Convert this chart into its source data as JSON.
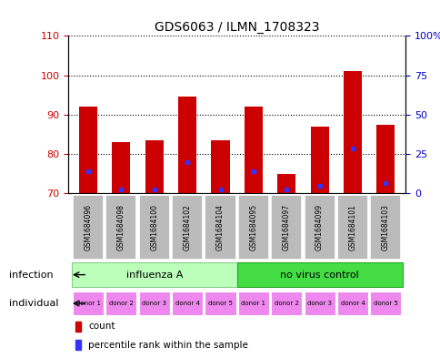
{
  "title": "GDS6063 / ILMN_1708323",
  "samples": [
    "GSM1684096",
    "GSM1684098",
    "GSM1684100",
    "GSM1684102",
    "GSM1684104",
    "GSM1684095",
    "GSM1684097",
    "GSM1684099",
    "GSM1684101",
    "GSM1684103"
  ],
  "bar_values": [
    92,
    83,
    83.5,
    94.5,
    83.5,
    92,
    75,
    87,
    101,
    87.5
  ],
  "blue_values": [
    75.5,
    71,
    71,
    78,
    71,
    75.5,
    71,
    72,
    81.5,
    72.5
  ],
  "ylim_left": [
    70,
    110
  ],
  "ylim_right": [
    0,
    100
  ],
  "yticks_left": [
    70,
    80,
    90,
    100,
    110
  ],
  "yticks_right": [
    0,
    25,
    50,
    75,
    100
  ],
  "yticklabels_right": [
    "0",
    "25",
    "50",
    "75",
    "100%"
  ],
  "bar_color": "#cc0000",
  "blue_color": "#3333ff",
  "bar_width": 0.55,
  "infection_groups": [
    {
      "label": "influenza A",
      "start": 0,
      "end": 4,
      "color": "#bbffbb"
    },
    {
      "label": "no virus control",
      "start": 5,
      "end": 9,
      "color": "#44dd44"
    }
  ],
  "individuals": [
    "donor 1",
    "donor 2",
    "donor 3",
    "donor 4",
    "donor 5",
    "donor 1",
    "donor 2",
    "donor 3",
    "donor 4",
    "donor 5"
  ],
  "individual_color": "#ee88ee",
  "sample_bg_color": "#bbbbbb",
  "infection_label": "infection",
  "individual_label": "individual",
  "legend_count": "count",
  "legend_percentile": "percentile rank within the sample",
  "left_tick_color": "#cc0000",
  "right_tick_color": "#0000cc"
}
